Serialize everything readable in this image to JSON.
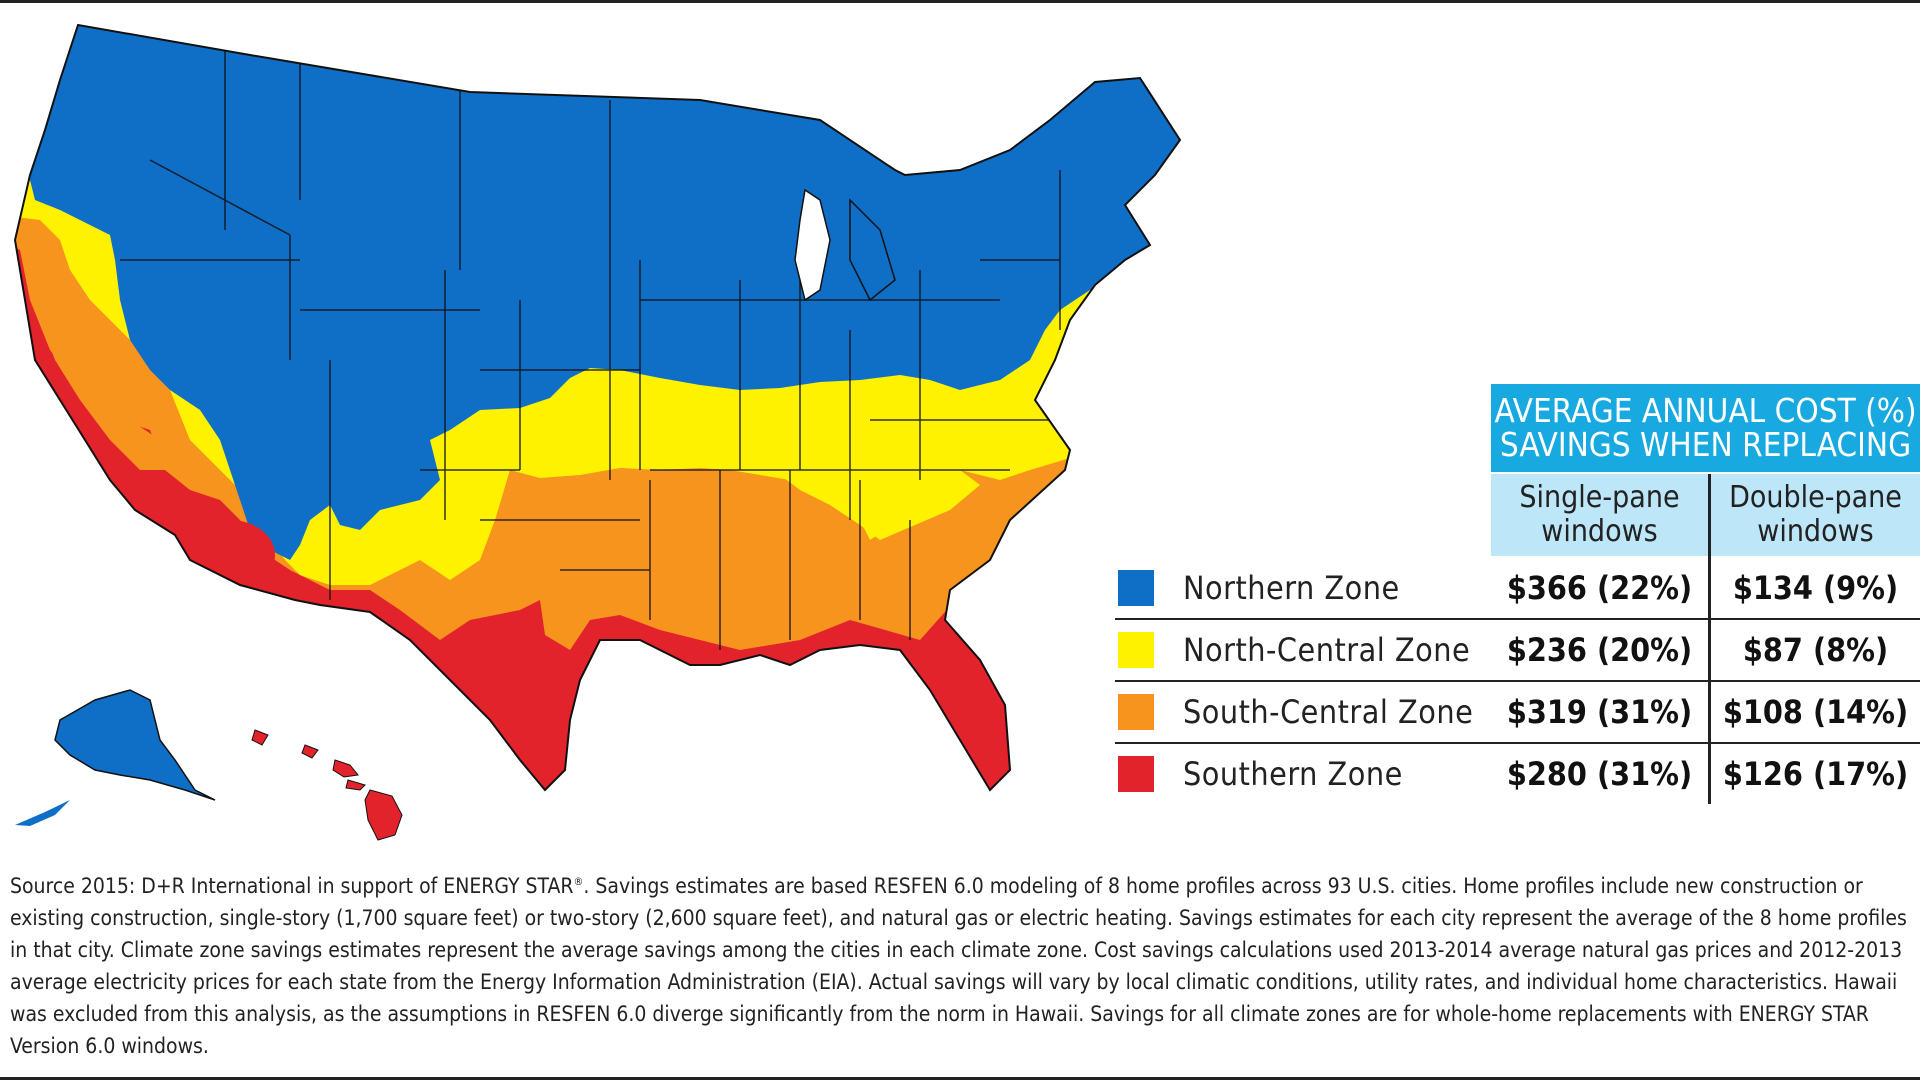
{
  "table": {
    "header_line1": "AVERAGE ANNUAL COST (%)",
    "header_line2": "SAVINGS WHEN REPLACING",
    "col_single_line1": "Single-pane",
    "col_single_line2": "windows",
    "col_double_line1": "Double-pane",
    "col_double_line2": "windows",
    "rows": [
      {
        "zone": "Northern Zone",
        "color": "#0f6fc6",
        "single": "$366 (22%)",
        "double": "$134 (9%)"
      },
      {
        "zone": "North-Central Zone",
        "color": "#fff200",
        "single": "$236 (20%)",
        "double": "$87 (8%)"
      },
      {
        "zone": "South-Central Zone",
        "color": "#f7941d",
        "single": "$319 (31%)",
        "double": "$108 (14%)"
      },
      {
        "zone": "Southern Zone",
        "color": "#e3232c",
        "single": "$280 (31%)",
        "double": "$126 (17%)"
      }
    ]
  },
  "source": {
    "part1": "Source 2015: D+R International in support of ENERGY STAR",
    "reg": "®",
    "part2": ". Savings estimates are based RESFEN 6.0 modeling of 8 home profiles across 93 U.S. cities. Home profiles include new construction or existing construction, single-story (1,700 square feet) or two-story (2,600 square feet), and natural gas or electric heating. Savings estimates for each city represent the average of the 8 home profiles in that city. Climate zone savings estimates represent the average savings among the cities in each climate zone. Cost savings calculations used 2013-2014 average natural gas prices and 2012-2013 average electricity prices for each state from the Energy Information Administration (EIA). Actual savings will vary by local climatic conditions, utility rates, and individual home characteristics. Hawaii was excluded from this analysis, as the assumptions in RESFEN 6.0 diverge significantly from the norm in Hawaii. Savings for all climate zones are for whole-home replacements with ENERGY STAR Version 6.0 windows."
  },
  "colors": {
    "northern": "#0f6fc6",
    "north_central": "#fff200",
    "south_central": "#f7941d",
    "southern": "#e3232c",
    "header_band": "#19a9e1",
    "column_header": "#bde7f8"
  }
}
